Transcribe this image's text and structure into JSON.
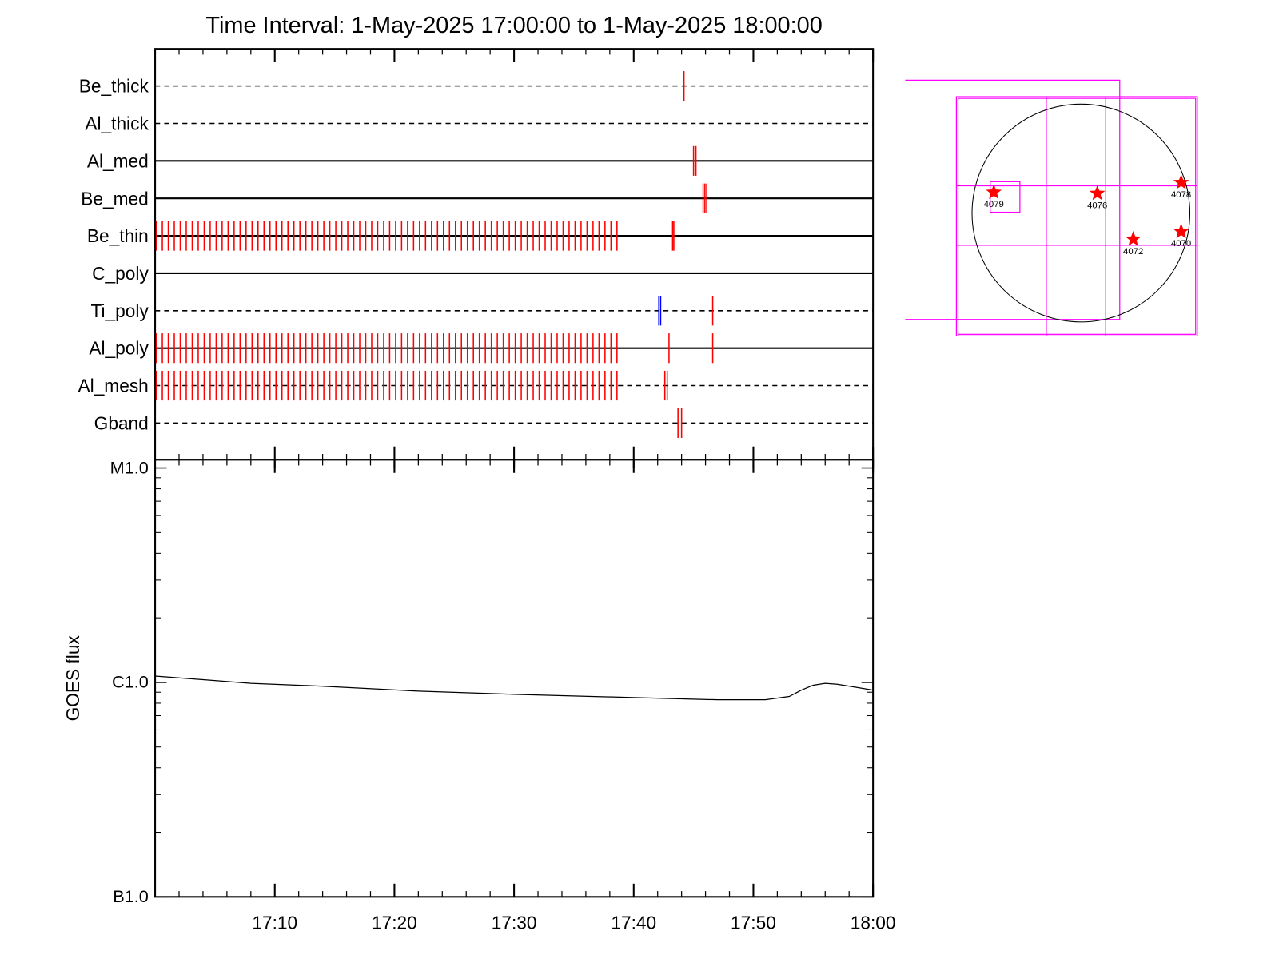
{
  "chart_data": [
    {
      "type": "timeline",
      "title": "Time Interval:  1-May-2025 17:00:00 to  1-May-2025 18:00:00",
      "categories": [
        "Be_thick",
        "Al_thick",
        "Al_med",
        "Be_med",
        "Be_thin",
        "C_poly",
        "Ti_poly",
        "Al_poly",
        "Al_mesh",
        "Gband"
      ],
      "line_styles": [
        "dashed",
        "dashed",
        "solid",
        "solid",
        "solid",
        "solid",
        "dashed",
        "solid",
        "dashed",
        "dashed"
      ],
      "xlim": [
        0,
        60
      ],
      "minor_ticks": 5,
      "events": [
        {
          "row": 0,
          "color": "#ff0000",
          "times": [
            44.2
          ]
        },
        {
          "row": 2,
          "color": "#ff0000",
          "times": [
            45.0,
            45.2
          ]
        },
        {
          "row": 3,
          "color": "#ff0000",
          "times": [
            45.8,
            45.95,
            46.1
          ]
        },
        {
          "row": 4,
          "color": "#ff0000",
          "times": [
            0.1,
            0.6,
            1.1,
            1.6,
            2.1,
            2.6,
            3.1,
            3.6,
            4.1,
            4.6,
            5.1,
            5.6,
            6.1,
            6.6,
            7.1,
            7.6,
            8.1,
            8.6,
            9.1,
            9.6,
            10.1,
            10.6,
            11.1,
            11.6,
            12.1,
            12.6,
            13.1,
            13.6,
            14.1,
            14.6,
            15.1,
            15.6,
            16.1,
            16.6,
            17.1,
            17.6,
            18.1,
            18.6,
            19.1,
            19.6,
            20.1,
            20.6,
            21.1,
            21.6,
            22.1,
            22.6,
            23.1,
            23.6,
            24.1,
            24.6,
            25.1,
            25.6,
            26.1,
            26.6,
            27.1,
            27.6,
            28.1,
            28.6,
            29.1,
            29.6,
            30.1,
            30.6,
            31.1,
            31.6,
            32.1,
            32.6,
            33.1,
            33.6,
            34.1,
            34.6,
            35.1,
            35.6,
            36.1,
            36.6,
            37.1,
            37.6,
            38.1,
            38.6,
            43.25,
            43.35
          ]
        },
        {
          "row": 6,
          "color": "#0000ff",
          "times": [
            42.1,
            42.25
          ]
        },
        {
          "row": 6,
          "color": "#ff0000",
          "times": [
            46.6
          ]
        },
        {
          "row": 7,
          "color": "#ff0000",
          "times": [
            0.1,
            0.6,
            1.1,
            1.6,
            2.1,
            2.6,
            3.1,
            3.6,
            4.1,
            4.6,
            5.1,
            5.6,
            6.1,
            6.6,
            7.1,
            7.6,
            8.1,
            8.6,
            9.1,
            9.6,
            10.1,
            10.6,
            11.1,
            11.6,
            12.1,
            12.6,
            13.1,
            13.6,
            14.1,
            14.6,
            15.1,
            15.6,
            16.1,
            16.6,
            17.1,
            17.6,
            18.1,
            18.6,
            19.1,
            19.6,
            20.1,
            20.6,
            21.1,
            21.6,
            22.1,
            22.6,
            23.1,
            23.6,
            24.1,
            24.6,
            25.1,
            25.6,
            26.1,
            26.6,
            27.1,
            27.6,
            28.1,
            28.6,
            29.1,
            29.6,
            30.1,
            30.6,
            31.1,
            31.6,
            32.1,
            32.6,
            33.1,
            33.6,
            34.1,
            34.6,
            35.1,
            35.6,
            36.1,
            36.6,
            37.1,
            37.6,
            38.1,
            38.6,
            42.95,
            46.6
          ]
        },
        {
          "row": 8,
          "color": "#ff0000",
          "times": [
            0.1,
            0.6,
            1.1,
            1.6,
            2.1,
            2.6,
            3.1,
            3.6,
            4.1,
            4.6,
            5.1,
            5.6,
            6.1,
            6.6,
            7.1,
            7.6,
            8.1,
            8.6,
            9.1,
            9.6,
            10.1,
            10.6,
            11.1,
            11.6,
            12.1,
            12.6,
            13.1,
            13.6,
            14.1,
            14.6,
            15.1,
            15.6,
            16.1,
            16.6,
            17.1,
            17.6,
            18.1,
            18.6,
            19.1,
            19.6,
            20.1,
            20.6,
            21.1,
            21.6,
            22.1,
            22.6,
            23.1,
            23.6,
            24.1,
            24.6,
            25.1,
            25.6,
            26.1,
            26.6,
            27.1,
            27.6,
            28.1,
            28.6,
            29.1,
            29.6,
            30.1,
            30.6,
            31.1,
            31.6,
            32.1,
            32.6,
            33.1,
            33.6,
            34.1,
            34.6,
            35.1,
            35.6,
            36.1,
            36.6,
            37.1,
            37.6,
            38.1,
            38.6,
            42.6,
            42.8
          ]
        },
        {
          "row": 9,
          "color": "#ff0000",
          "times": [
            43.7,
            44.0
          ]
        }
      ]
    },
    {
      "type": "line",
      "y_label": "GOES flux",
      "color": "#000000",
      "log_scale": true,
      "minor_ticks": true,
      "xlim": [
        0,
        60
      ],
      "xticks": [
        {
          "value": 10,
          "label": "17:10"
        },
        {
          "value": 20,
          "label": "17:20"
        },
        {
          "value": 30,
          "label": "17:30"
        },
        {
          "value": 40,
          "label": "17:40"
        },
        {
          "value": 50,
          "label": "17:50"
        },
        {
          "value": 60,
          "label": "18:00"
        }
      ],
      "ylim": [
        1e-07,
        1e-05
      ],
      "yticks": [
        {
          "value": 1e-07,
          "label": "B1.0"
        },
        {
          "value": 1e-06,
          "label": "C1.0"
        },
        {
          "value": 1e-05,
          "label": "M1.0"
        }
      ],
      "x": [
        0,
        4,
        8,
        14,
        22,
        30,
        40,
        47,
        51,
        53,
        54,
        55,
        56,
        57,
        58.5,
        60
      ],
      "values": [
        1.07e-06,
        1.03e-06,
        9.9e-07,
        9.6e-07,
        9.1e-07,
        8.8e-07,
        8.5e-07,
        8.3e-07,
        8.3e-07,
        8.6e-07,
        9.2e-07,
        9.7e-07,
        9.9e-07,
        9.8e-07,
        9.5e-07,
        9.2e-07
      ]
    },
    {
      "type": "map",
      "color": "#ff0000",
      "regions": [
        {
          "label": "4079",
          "x": -0.8,
          "y": 0.19
        },
        {
          "label": "4076",
          "x": 0.15,
          "y": 0.18
        },
        {
          "label": "4078",
          "x": 0.92,
          "y": 0.28
        },
        {
          "label": "4072",
          "x": 0.48,
          "y": -0.24
        },
        {
          "label": "4070",
          "x": 0.92,
          "y": -0.17
        }
      ]
    }
  ]
}
